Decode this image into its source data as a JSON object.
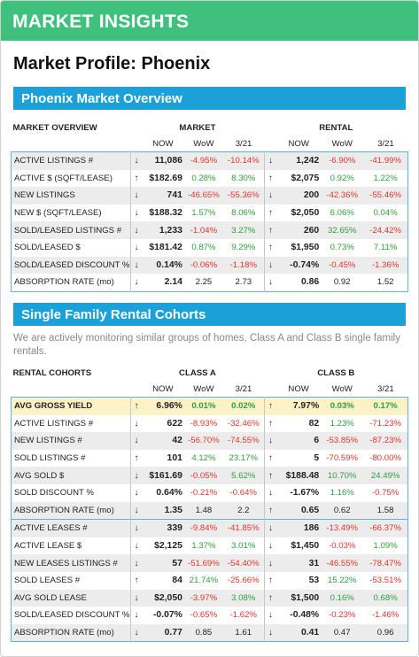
{
  "header": {
    "title": "MARKET INSIGHTS"
  },
  "profile_title": "Market Profile: Phoenix",
  "overview": {
    "title": "Phoenix Market Overview",
    "label": "MARKET OVERVIEW",
    "groups": [
      "MARKET",
      "RENTAL"
    ],
    "columns": [
      "NOW",
      "WoW",
      "3/21"
    ],
    "blocks": [
      {
        "rows": [
          {
            "label": "ACTIVE LISTINGS #",
            "cells": [
              [
                "↓",
                "11,086",
                "-4.95%",
                "-10.14%"
              ],
              [
                "↓",
                "1,242",
                "-6.90%",
                "-41.99%"
              ]
            ]
          },
          {
            "label": "ACTIVE $ (SQFT/LEASE)",
            "cells": [
              [
                "↑",
                "$182.69",
                "0.28%",
                "8.30%"
              ],
              [
                "↑",
                "$2,075",
                "0.92%",
                "1.22%"
              ]
            ]
          },
          {
            "label": "NEW LISTINGS",
            "cells": [
              [
                "↓",
                "741",
                "-46.65%",
                "-55.36%"
              ],
              [
                "↓",
                "200",
                "-42.36%",
                "-55.46%"
              ]
            ]
          },
          {
            "label": "NEW $ (SQFT/LEASE)",
            "cells": [
              [
                "↓",
                "$188.32",
                "1.57%",
                "8.06%"
              ],
              [
                "↑",
                "$2,050",
                "6.06%",
                "0.04%"
              ]
            ]
          },
          {
            "label": "SOLD/LEASED LISTINGS #",
            "cells": [
              [
                "↓",
                "1,233",
                "-1.04%",
                "3.27%"
              ],
              [
                "↑",
                "260",
                "32.65%",
                "-24.42%"
              ]
            ]
          },
          {
            "label": "SOLD/LEASED $",
            "cells": [
              [
                "↓",
                "$181.42",
                "0.87%",
                "9.29%"
              ],
              [
                "↑",
                "$1,950",
                "0.73%",
                "7.11%"
              ]
            ]
          },
          {
            "label": "SOLD/LEASED DISCOUNT %",
            "cells": [
              [
                "↓",
                "0.14%",
                "-0.06%",
                "-1.18%"
              ],
              [
                "↓",
                "-0.74%",
                "-0.45%",
                "-1.36%"
              ]
            ]
          },
          {
            "label": "ABSORPTION RATE (mo)",
            "cells": [
              [
                "↓",
                "2.14",
                "2.25",
                "2.73"
              ],
              [
                "↓",
                "0.86",
                "0.92",
                "1.52"
              ]
            ]
          }
        ]
      }
    ]
  },
  "cohorts": {
    "title": "Single Family Rental Cohorts",
    "note": "We are actively monitoring similar groups of homes, Class A and Class B single family rentals.",
    "label": "RENTAL COHORTS",
    "groups": [
      "CLASS A",
      "CLASS B"
    ],
    "columns": [
      "NOW",
      "WoW",
      "3/21"
    ],
    "blocks": [
      {
        "rows": [
          {
            "label": "AVG GROSS YIELD",
            "cells": [
              [
                "↑",
                "6.96%",
                "0.01%",
                "0.02%"
              ],
              [
                "↑",
                "7.97%",
                "0.03%",
                "0.17%"
              ]
            ]
          },
          {
            "label": "ACTIVE LISTINGS #",
            "cells": [
              [
                "↓",
                "622",
                "-8.93%",
                "-32.46%"
              ],
              [
                "↑",
                "82",
                "1.23%",
                "-71.23%"
              ]
            ]
          },
          {
            "label": "NEW LISTINGS #",
            "cells": [
              [
                "↓",
                "42",
                "-56.70%",
                "-74.55%"
              ],
              [
                "↓",
                "6",
                "-53.85%",
                "-87.23%"
              ]
            ]
          },
          {
            "label": "SOLD LISTINGS #",
            "cells": [
              [
                "↑",
                "101",
                "4.12%",
                "23.17%"
              ],
              [
                "↑",
                "5",
                "-70.59%",
                "-80.00%"
              ]
            ]
          },
          {
            "label": "AVG SOLD $",
            "cells": [
              [
                "↓",
                "$161.69",
                "-0.05%",
                "5.62%"
              ],
              [
                "↑",
                "$188.48",
                "10.70%",
                "24.49%"
              ]
            ]
          },
          {
            "label": "SOLD DISCOUNT %",
            "cells": [
              [
                "↓",
                "0.64%",
                "-0.21%",
                "-0.64%"
              ],
              [
                "↓",
                "-1.67%",
                "1.16%",
                "-0.75%"
              ]
            ]
          },
          {
            "label": "ABSORPTION RATE (mo)",
            "cells": [
              [
                "↓",
                "1.35",
                "1.48",
                "2.2"
              ],
              [
                "↑",
                "0.65",
                "0.62",
                "1.58"
              ]
            ]
          }
        ]
      },
      {
        "rows": [
          {
            "label": "ACTIVE LEASES #",
            "cells": [
              [
                "↓",
                "339",
                "-9.84%",
                "-41.85%"
              ],
              [
                "↓",
                "186",
                "-13.49%",
                "-66.37%"
              ]
            ]
          },
          {
            "label": "ACTIVE LEASE $",
            "cells": [
              [
                "↓",
                "$2,125",
                "1.37%",
                "3.01%"
              ],
              [
                "↓",
                "$1,450",
                "-0.03%",
                "1.09%"
              ]
            ]
          },
          {
            "label": "NEW LEASES LISTINGS #",
            "cells": [
              [
                "↓",
                "57",
                "-51.69%",
                "-54.40%"
              ],
              [
                "↓",
                "31",
                "-46.55%",
                "-78.47%"
              ]
            ]
          },
          {
            "label": "SOLD LEASES #",
            "cells": [
              [
                "↑",
                "84",
                "21.74%",
                "-25.66%"
              ],
              [
                "↑",
                "53",
                "15.22%",
                "-53.51%"
              ]
            ]
          },
          {
            "label": "AVG SOLD LEASE",
            "cells": [
              [
                "↓",
                "$2,050",
                "-3.97%",
                "3.08%"
              ],
              [
                "↑",
                "$1,500",
                "0.16%",
                "0.68%"
              ]
            ]
          },
          {
            "label": "SOLD/LEASED DISCOUNT %",
            "cells": [
              [
                "↓",
                "-0.07%",
                "-0.65%",
                "-1.62%"
              ],
              [
                "↓",
                "-0.48%",
                "-0.23%",
                "-1.46%"
              ]
            ]
          },
          {
            "label": "ABSORPTION RATE (mo)",
            "cells": [
              [
                "↓",
                "0.77",
                "0.85",
                "1.61"
              ],
              [
                "↓",
                "0.41",
                "0.47",
                "0.96"
              ]
            ]
          }
        ]
      }
    ]
  }
}
